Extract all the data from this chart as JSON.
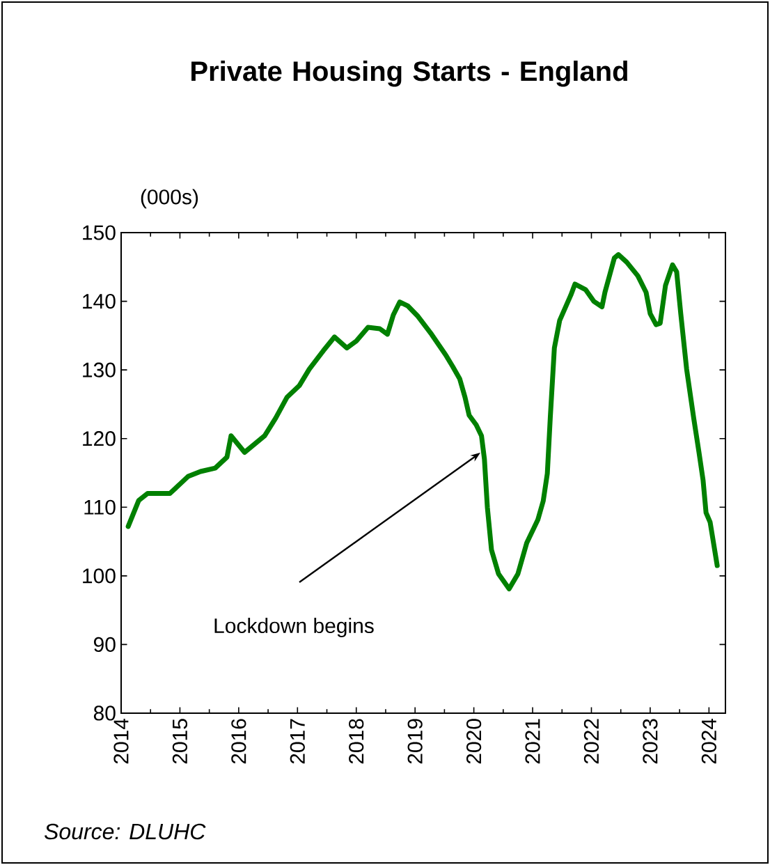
{
  "chart_data": {
    "type": "line",
    "title": "Private Housing Starts - England",
    "ylabel": "(000s)",
    "x": [
      2014.12,
      2014.3,
      2014.45,
      2014.83,
      2015.14,
      2015.35,
      2015.6,
      2015.8,
      2015.87,
      2016.1,
      2016.44,
      2016.63,
      2016.82,
      2017.03,
      2017.2,
      2017.44,
      2017.63,
      2017.84,
      2018.0,
      2018.2,
      2018.4,
      2018.53,
      2018.63,
      2018.74,
      2018.88,
      2019.05,
      2019.28,
      2019.52,
      2019.64,
      2019.76,
      2019.85,
      2019.92,
      2020.04,
      2020.13,
      2020.18,
      2020.23,
      2020.3,
      2020.42,
      2020.6,
      2020.75,
      2020.9,
      2021.09,
      2021.18,
      2021.25,
      2021.3,
      2021.37,
      2021.46,
      2021.65,
      2021.72,
      2021.9,
      2022.04,
      2022.18,
      2022.23,
      2022.32,
      2022.39,
      2022.46,
      2022.6,
      2022.79,
      2022.93,
      2023.0,
      2023.1,
      2023.17,
      2023.26,
      2023.38,
      2023.45,
      2023.52,
      2023.62,
      2023.74,
      2023.83,
      2023.9,
      2023.95,
      2024.02,
      2024.14
    ],
    "series": [
      {
        "color": "#008000",
        "values": [
          107.2,
          111,
          112,
          112,
          114.5,
          115.2,
          115.7,
          117.3,
          120.4,
          118,
          120.4,
          123,
          126,
          127.7,
          130.1,
          132.8,
          134.8,
          133.2,
          134.2,
          136.2,
          136,
          135.2,
          138,
          139.9,
          139.3,
          137.8,
          135.2,
          132.2,
          130.5,
          128.7,
          126,
          123.4,
          122,
          120.4,
          117,
          110,
          103.8,
          100.3,
          98.1,
          100.3,
          104.8,
          108.2,
          110.9,
          114.9,
          123,
          133.2,
          137.2,
          140.9,
          142.5,
          141.7,
          140,
          139.2,
          141.3,
          144.1,
          146.3,
          146.8,
          145.7,
          143.7,
          141.3,
          138.2,
          136.6,
          136.8,
          142.3,
          145.3,
          144.3,
          138.2,
          130.1,
          123,
          118,
          113.9,
          109.2,
          107.8,
          101.5
        ]
      }
    ],
    "xlim": [
      2014,
      2024.28
    ],
    "xticks": [
      2014,
      2015,
      2016,
      2017,
      2018,
      2019,
      2020,
      2021,
      2022,
      2023,
      2024
    ],
    "ylim": [
      80,
      150
    ],
    "yticks": [
      80,
      90,
      100,
      110,
      120,
      130,
      140,
      150
    ],
    "grid": false,
    "annotations": [
      "Lockdown begins",
      "Source: DLUHC"
    ]
  }
}
